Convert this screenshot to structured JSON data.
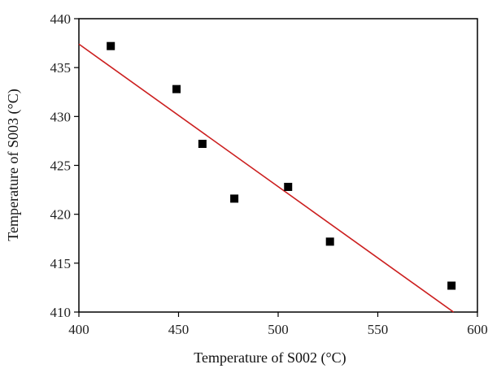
{
  "chart_data": {
    "type": "scatter",
    "xlabel": "Temperature of S002 (°C)",
    "ylabel": "Temperature of S003 (°C)",
    "xlim": [
      400,
      600
    ],
    "ylim": [
      410,
      440
    ],
    "xticks": [
      400,
      450,
      500,
      550,
      600
    ],
    "yticks": [
      410,
      415,
      420,
      425,
      430,
      435,
      440
    ],
    "grid": false,
    "legend": "none",
    "series": [
      {
        "marker": "square",
        "color": "#000000",
        "points": [
          {
            "x": 416,
            "y": 437.2
          },
          {
            "x": 449,
            "y": 432.8
          },
          {
            "x": 462,
            "y": 427.2
          },
          {
            "x": 478,
            "y": 421.6
          },
          {
            "x": 505,
            "y": 422.8
          },
          {
            "x": 526,
            "y": 417.2
          },
          {
            "x": 587,
            "y": 412.7
          }
        ]
      }
    ],
    "fit_line": {
      "color": "#cc1f1f",
      "points": [
        {
          "x": 400,
          "y": 437.4
        },
        {
          "x": 588,
          "y": 410.0
        }
      ]
    }
  }
}
